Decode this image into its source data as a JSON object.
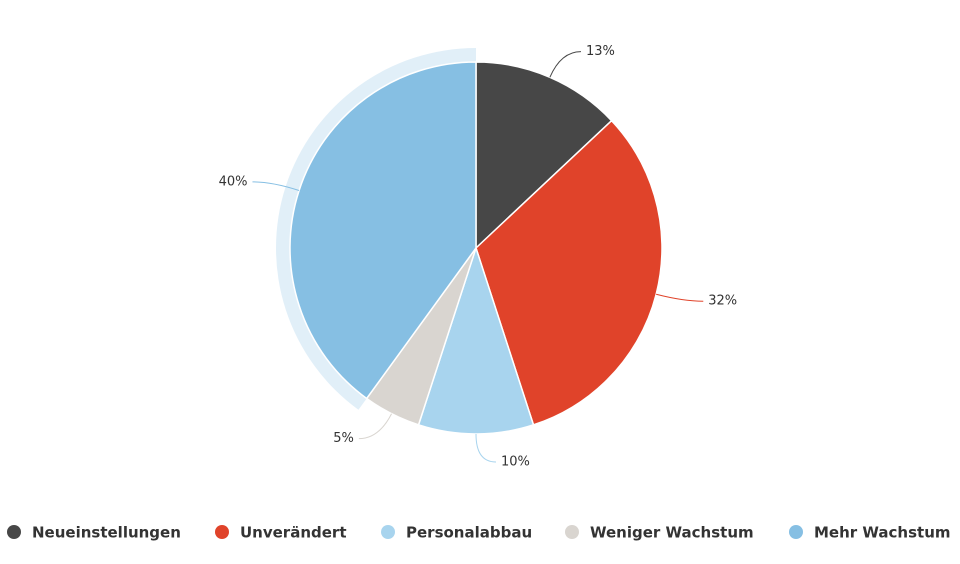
{
  "chart_data": {
    "type": "pie",
    "categories": [
      "Neueinstellungen",
      "Unverändert",
      "Personalabbau",
      "Weniger Wachstum",
      "Mehr Wachstum"
    ],
    "values": [
      13,
      32,
      10,
      5,
      40
    ],
    "value_labels": [
      "13%",
      "32%",
      "10%",
      "5%",
      "40%"
    ],
    "colors": [
      "#474747",
      "#e0432a",
      "#a8d4ee",
      "#d9d5d0",
      "#86bfe3"
    ],
    "legend": "bottom"
  }
}
